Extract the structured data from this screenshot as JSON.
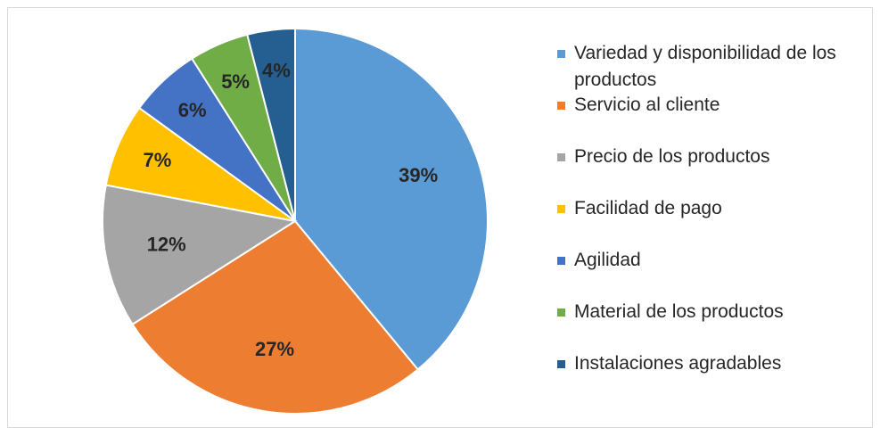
{
  "chart_data": {
    "type": "pie",
    "categories": [
      "Variedad y disponibilidad de los productos",
      "Servicio al cliente",
      "Precio de los productos",
      "Facilidad de pago",
      "Agilidad",
      "Material de los productos",
      "Instalaciones agradables"
    ],
    "values": [
      39,
      27,
      12,
      7,
      6,
      5,
      4
    ],
    "value_labels": [
      "39%",
      "27%",
      "12%",
      "7%",
      "6%",
      "5%",
      "4%"
    ],
    "colors": [
      "#5b9bd5",
      "#ed7d31",
      "#a5a5a5",
      "#ffc000",
      "#4472c4",
      "#70ad47",
      "#255e91"
    ],
    "legend": "right"
  }
}
